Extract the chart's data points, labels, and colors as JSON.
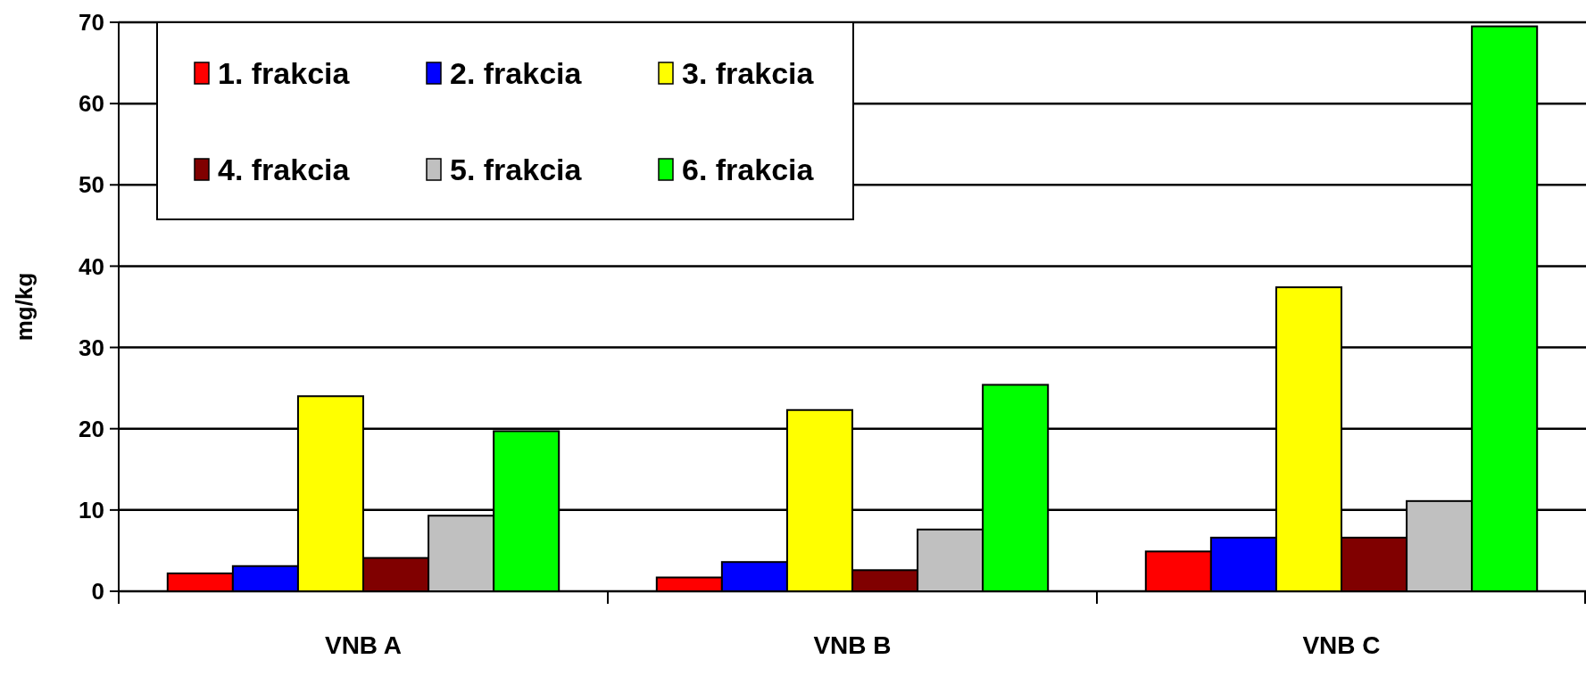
{
  "chart_data": {
    "type": "bar",
    "ylabel": "mg/kg",
    "categories": [
      "VNB A",
      "VNB B",
      "VNB C"
    ],
    "series": [
      {
        "name": "1. frakcia",
        "color": "#ff0000",
        "values": [
          2.2,
          1.7,
          4.9
        ]
      },
      {
        "name": "2. frakcia",
        "color": "#0000ff",
        "values": [
          3.1,
          3.6,
          6.6
        ]
      },
      {
        "name": "3. frakcia",
        "color": "#ffff00",
        "values": [
          24.0,
          22.3,
          37.4
        ]
      },
      {
        "name": "4. frakcia",
        "color": "#800000",
        "values": [
          4.1,
          2.6,
          6.6
        ]
      },
      {
        "name": "5. frakcia",
        "color": "#c0c0c0",
        "values": [
          9.3,
          7.6,
          11.1
        ]
      },
      {
        "name": "6. frakcia",
        "color": "#00ff00",
        "values": [
          19.7,
          25.4,
          69.5
        ]
      }
    ],
    "ylim": [
      0,
      70
    ],
    "yticks": [
      0,
      10,
      20,
      30,
      40,
      50,
      60,
      70
    ],
    "grid": "y",
    "legend": "top left"
  }
}
